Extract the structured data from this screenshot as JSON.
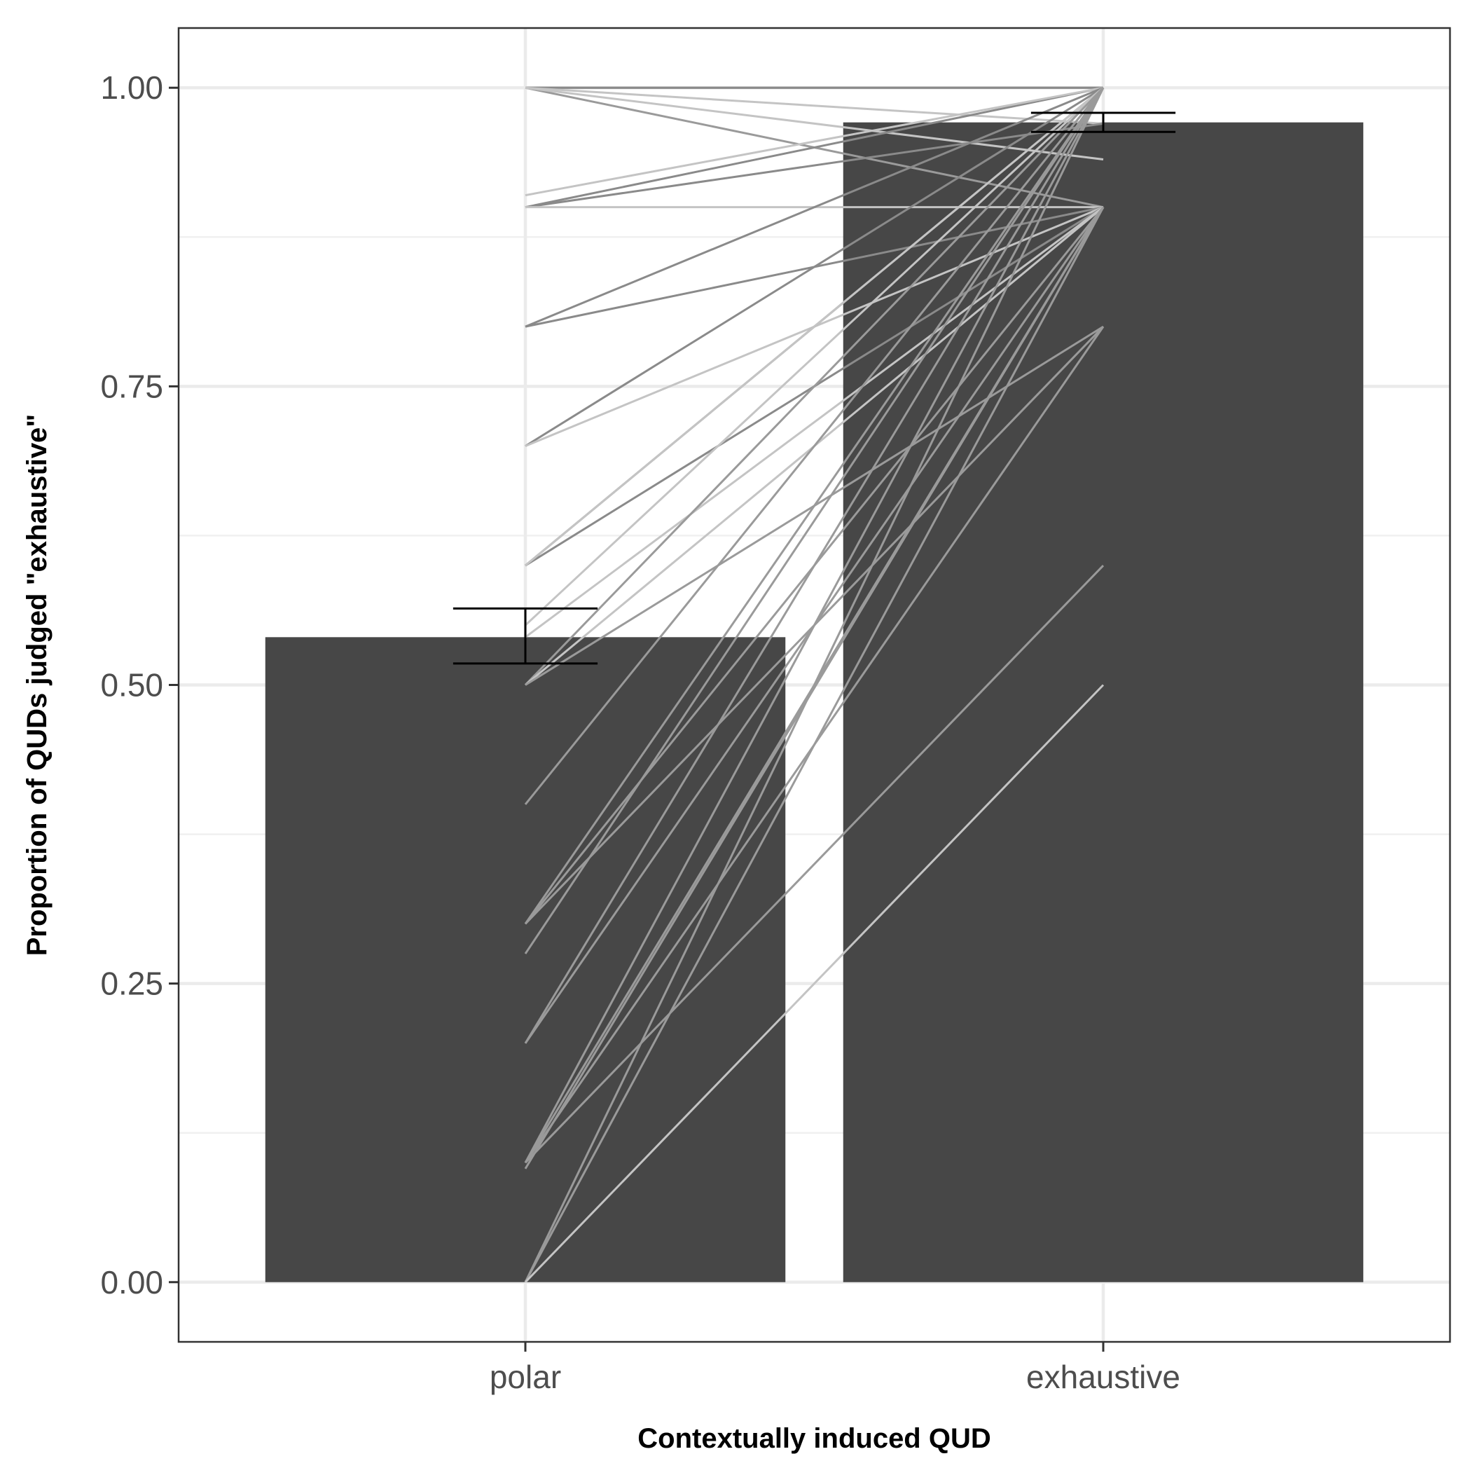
{
  "chart_data": {
    "type": "bar",
    "title": "",
    "xlabel": "Contextually induced QUD",
    "ylabel": "Proportion of QUDs judged \"exhaustive\"",
    "categories": [
      "polar",
      "exhaustive"
    ],
    "values": [
      0.54,
      0.971
    ],
    "error_bars": [
      {
        "category": "polar",
        "lower": 0.518,
        "upper": 0.564
      },
      {
        "category": "exhaustive",
        "lower": 0.963,
        "upper": 0.979
      }
    ],
    "ylim": [
      -0.05,
      1.05
    ],
    "yticks": [
      0.0,
      0.25,
      0.5,
      0.75,
      1.0
    ],
    "ytick_labels": [
      "0.00",
      "0.25",
      "0.50",
      "0.75",
      "1.00"
    ],
    "grid": true,
    "legend": "none",
    "colors": {
      "bar": "#474747",
      "error_bar": "#000000",
      "grid_major": "#ebebeb",
      "grid_minor": "#f0f0f0",
      "panel_border": "#333333",
      "line_dark": "#8a8a8a",
      "line_mid": "#9a9a9a",
      "line_light": "#c4c4c4"
    },
    "participant_lines": [
      {
        "polar": 1.0,
        "exhaustive": 1.0,
        "shade": "dark"
      },
      {
        "polar": 1.0,
        "exhaustive": 1.0,
        "shade": "dark"
      },
      {
        "polar": 1.0,
        "exhaustive": 0.9,
        "shade": "mid"
      },
      {
        "polar": 1.0,
        "exhaustive": 0.94,
        "shade": "light"
      },
      {
        "polar": 1.0,
        "exhaustive": 0.97,
        "shade": "light"
      },
      {
        "polar": 0.9,
        "exhaustive": 1.0,
        "shade": "dark"
      },
      {
        "polar": 0.9,
        "exhaustive": 0.97,
        "shade": "dark"
      },
      {
        "polar": 0.91,
        "exhaustive": 1.0,
        "shade": "light"
      },
      {
        "polar": 0.9,
        "exhaustive": 0.9,
        "shade": "light"
      },
      {
        "polar": 0.8,
        "exhaustive": 1.0,
        "shade": "dark"
      },
      {
        "polar": 0.8,
        "exhaustive": 0.9,
        "shade": "dark"
      },
      {
        "polar": 0.7,
        "exhaustive": 1.0,
        "shade": "dark"
      },
      {
        "polar": 0.7,
        "exhaustive": 0.9,
        "shade": "light"
      },
      {
        "polar": 0.6,
        "exhaustive": 1.0,
        "shade": "dark"
      },
      {
        "polar": 0.6,
        "exhaustive": 0.9,
        "shade": "dark"
      },
      {
        "polar": 0.6,
        "exhaustive": 1.0,
        "shade": "light"
      },
      {
        "polar": 0.55,
        "exhaustive": 1.0,
        "shade": "light"
      },
      {
        "polar": 0.54,
        "exhaustive": 0.9,
        "shade": "light"
      },
      {
        "polar": 0.5,
        "exhaustive": 1.0,
        "shade": "mid"
      },
      {
        "polar": 0.5,
        "exhaustive": 0.9,
        "shade": "light"
      },
      {
        "polar": 0.5,
        "exhaustive": 0.8,
        "shade": "mid"
      },
      {
        "polar": 0.4,
        "exhaustive": 1.0,
        "shade": "mid"
      },
      {
        "polar": 0.3,
        "exhaustive": 1.0,
        "shade": "mid"
      },
      {
        "polar": 0.3,
        "exhaustive": 0.9,
        "shade": "mid"
      },
      {
        "polar": 0.3,
        "exhaustive": 0.8,
        "shade": "mid"
      },
      {
        "polar": 0.275,
        "exhaustive": 1.0,
        "shade": "mid"
      },
      {
        "polar": 0.2,
        "exhaustive": 1.0,
        "shade": "mid"
      },
      {
        "polar": 0.2,
        "exhaustive": 0.9,
        "shade": "mid"
      },
      {
        "polar": 0.1,
        "exhaustive": 1.0,
        "shade": "mid"
      },
      {
        "polar": 0.1,
        "exhaustive": 0.9,
        "shade": "mid"
      },
      {
        "polar": 0.1,
        "exhaustive": 0.8,
        "shade": "mid"
      },
      {
        "polar": 0.1,
        "exhaustive": 0.6,
        "shade": "mid"
      },
      {
        "polar": 0.095,
        "exhaustive": 0.9,
        "shade": "mid"
      },
      {
        "polar": 0.0,
        "exhaustive": 1.0,
        "shade": "mid"
      },
      {
        "polar": 0.0,
        "exhaustive": 0.9,
        "shade": "mid"
      },
      {
        "polar": 0.0,
        "exhaustive": 0.5,
        "shade": "light"
      }
    ]
  }
}
